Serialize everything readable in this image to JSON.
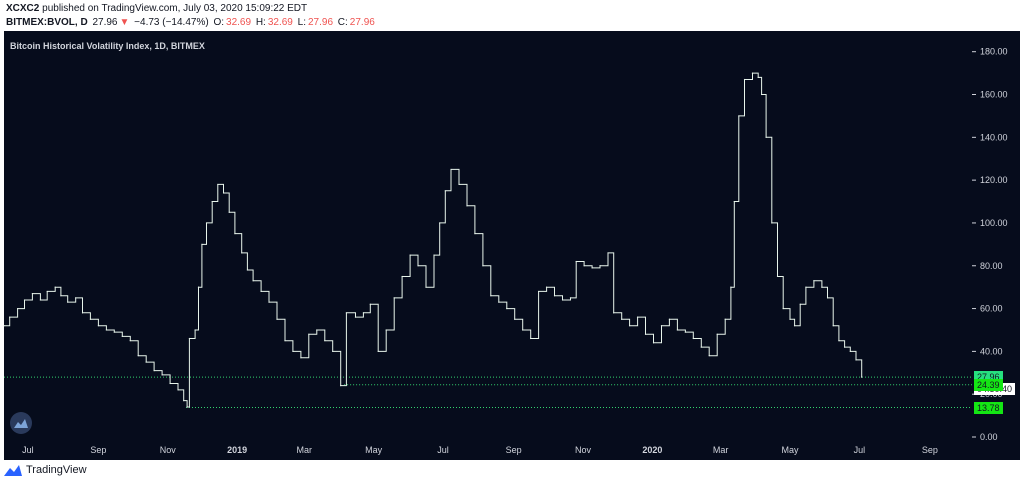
{
  "header": {
    "author": "XCXC2",
    "published_text": "published on TradingView.com, July 03, 2020 15:09:22 EDT",
    "symbol": "BITMEX:BVOL, D",
    "last": "27.96",
    "change_arrow": "▼",
    "change": "−4.73 (−14.47%)",
    "o_label": "O:",
    "o": "32.69",
    "h_label": "H:",
    "h": "32.69",
    "l_label": "L:",
    "l": "27.96",
    "c_label": "C:",
    "c": "27.96"
  },
  "price_tags": {
    "last": "27.96",
    "countdown": "04:50:40",
    "level_a": "24.39",
    "level_b": "13.78"
  },
  "footer": {
    "brand": "TradingView"
  },
  "colors": {
    "background": "#060c1c",
    "line": "#e8f5ec",
    "tag_green": "#26e07f",
    "tag_bright": "#14e614",
    "dotted": "#32d26e"
  },
  "chart_data": {
    "type": "line",
    "title": "Bitcoin Historical Volatility Index, 1D, BITMEX",
    "ylim": [
      0,
      185
    ],
    "xlim": [
      "2018-06-10",
      "2020-10-08"
    ],
    "y_ticks": [
      "0.00",
      "20.00",
      "40.00",
      "60.00",
      "80.00",
      "100.00",
      "120.00",
      "140.00",
      "160.00",
      "180.00"
    ],
    "x_ticks": [
      {
        "date": "2018-07-01",
        "label": "Jul",
        "bold": false
      },
      {
        "date": "2018-09-01",
        "label": "Sep",
        "bold": false
      },
      {
        "date": "2018-11-01",
        "label": "Nov",
        "bold": false
      },
      {
        "date": "2019-01-01",
        "label": "2019",
        "bold": true
      },
      {
        "date": "2019-03-01",
        "label": "Mar",
        "bold": false
      },
      {
        "date": "2019-05-01",
        "label": "May",
        "bold": false
      },
      {
        "date": "2019-07-01",
        "label": "Jul",
        "bold": false
      },
      {
        "date": "2019-09-01",
        "label": "Sep",
        "bold": false
      },
      {
        "date": "2019-11-01",
        "label": "Nov",
        "bold": false
      },
      {
        "date": "2020-01-01",
        "label": "2020",
        "bold": true
      },
      {
        "date": "2020-03-01",
        "label": "Mar",
        "bold": false
      },
      {
        "date": "2020-05-01",
        "label": "May",
        "bold": false
      },
      {
        "date": "2020-07-01",
        "label": "Jul",
        "bold": false
      },
      {
        "date": "2020-09-01",
        "label": "Sep",
        "bold": false
      }
    ],
    "horizontal_lines": [
      {
        "value": 27.96,
        "from": "2018-06-10",
        "to": "2020-10-08"
      },
      {
        "value": 24.39,
        "from": "2019-04-05",
        "to": "2020-10-08"
      },
      {
        "value": 13.78,
        "from": "2018-11-17",
        "to": "2020-10-08"
      }
    ],
    "series": [
      {
        "points": [
          [
            "2018-06-10",
            52
          ],
          [
            "2018-06-15",
            56
          ],
          [
            "2018-06-22",
            60
          ],
          [
            "2018-06-28",
            64
          ],
          [
            "2018-07-05",
            67
          ],
          [
            "2018-07-12",
            64
          ],
          [
            "2018-07-18",
            68
          ],
          [
            "2018-07-25",
            70
          ],
          [
            "2018-07-30",
            66
          ],
          [
            "2018-08-05",
            63
          ],
          [
            "2018-08-12",
            65
          ],
          [
            "2018-08-18",
            58
          ],
          [
            "2018-08-25",
            55
          ],
          [
            "2018-09-01",
            52
          ],
          [
            "2018-09-08",
            50
          ],
          [
            "2018-09-15",
            49
          ],
          [
            "2018-09-22",
            47
          ],
          [
            "2018-09-29",
            45
          ],
          [
            "2018-10-06",
            38
          ],
          [
            "2018-10-13",
            35
          ],
          [
            "2018-10-20",
            31
          ],
          [
            "2018-10-27",
            29
          ],
          [
            "2018-11-03",
            25
          ],
          [
            "2018-11-10",
            22
          ],
          [
            "2018-11-15",
            17
          ],
          [
            "2018-11-18",
            14
          ],
          [
            "2018-11-20",
            46
          ],
          [
            "2018-11-25",
            50
          ],
          [
            "2018-11-28",
            70
          ],
          [
            "2018-12-01",
            90
          ],
          [
            "2018-12-05",
            100
          ],
          [
            "2018-12-10",
            110
          ],
          [
            "2018-12-15",
            118
          ],
          [
            "2018-12-20",
            114
          ],
          [
            "2018-12-25",
            105
          ],
          [
            "2018-12-30",
            95
          ],
          [
            "2019-01-05",
            86
          ],
          [
            "2019-01-10",
            78
          ],
          [
            "2019-01-15",
            73
          ],
          [
            "2019-01-22",
            68
          ],
          [
            "2019-01-29",
            63
          ],
          [
            "2019-02-05",
            55
          ],
          [
            "2019-02-12",
            45
          ],
          [
            "2019-02-19",
            40
          ],
          [
            "2019-02-26",
            37
          ],
          [
            "2019-03-05",
            48
          ],
          [
            "2019-03-12",
            50
          ],
          [
            "2019-03-19",
            45
          ],
          [
            "2019-03-26",
            40
          ],
          [
            "2019-04-02",
            24
          ],
          [
            "2019-04-07",
            58
          ],
          [
            "2019-04-15",
            56
          ],
          [
            "2019-04-22",
            58
          ],
          [
            "2019-04-28",
            62
          ],
          [
            "2019-05-05",
            40
          ],
          [
            "2019-05-12",
            50
          ],
          [
            "2019-05-19",
            65
          ],
          [
            "2019-05-26",
            75
          ],
          [
            "2019-06-02",
            85
          ],
          [
            "2019-06-09",
            80
          ],
          [
            "2019-06-16",
            70
          ],
          [
            "2019-06-23",
            85
          ],
          [
            "2019-06-28",
            100
          ],
          [
            "2019-07-03",
            115
          ],
          [
            "2019-07-08",
            125
          ],
          [
            "2019-07-15",
            118
          ],
          [
            "2019-07-22",
            108
          ],
          [
            "2019-07-29",
            95
          ],
          [
            "2019-08-05",
            80
          ],
          [
            "2019-08-12",
            66
          ],
          [
            "2019-08-19",
            63
          ],
          [
            "2019-08-26",
            60
          ],
          [
            "2019-09-02",
            55
          ],
          [
            "2019-09-09",
            50
          ],
          [
            "2019-09-16",
            46
          ],
          [
            "2019-09-23",
            68
          ],
          [
            "2019-09-30",
            70
          ],
          [
            "2019-10-07",
            66
          ],
          [
            "2019-10-14",
            64
          ],
          [
            "2019-10-21",
            65
          ],
          [
            "2019-10-26",
            82
          ],
          [
            "2019-11-02",
            80
          ],
          [
            "2019-11-09",
            79
          ],
          [
            "2019-11-16",
            80
          ],
          [
            "2019-11-23",
            86
          ],
          [
            "2019-11-28",
            58
          ],
          [
            "2019-12-05",
            55
          ],
          [
            "2019-12-12",
            52
          ],
          [
            "2019-12-19",
            56
          ],
          [
            "2019-12-26",
            48
          ],
          [
            "2020-01-02",
            44
          ],
          [
            "2020-01-09",
            52
          ],
          [
            "2020-01-16",
            55
          ],
          [
            "2020-01-23",
            50
          ],
          [
            "2020-01-30",
            49
          ],
          [
            "2020-02-06",
            46
          ],
          [
            "2020-02-13",
            42
          ],
          [
            "2020-02-20",
            38
          ],
          [
            "2020-02-27",
            48
          ],
          [
            "2020-03-05",
            55
          ],
          [
            "2020-03-10",
            70
          ],
          [
            "2020-03-13",
            110
          ],
          [
            "2020-03-17",
            150
          ],
          [
            "2020-03-22",
            167
          ],
          [
            "2020-03-29",
            170
          ],
          [
            "2020-04-03",
            168
          ],
          [
            "2020-04-06",
            160
          ],
          [
            "2020-04-10",
            140
          ],
          [
            "2020-04-15",
            100
          ],
          [
            "2020-04-20",
            75
          ],
          [
            "2020-04-25",
            60
          ],
          [
            "2020-05-01",
            55
          ],
          [
            "2020-05-05",
            52
          ],
          [
            "2020-05-10",
            62
          ],
          [
            "2020-05-15",
            70
          ],
          [
            "2020-05-22",
            73
          ],
          [
            "2020-05-29",
            70
          ],
          [
            "2020-06-03",
            65
          ],
          [
            "2020-06-08",
            52
          ],
          [
            "2020-06-13",
            45
          ],
          [
            "2020-06-18",
            42
          ],
          [
            "2020-06-23",
            40
          ],
          [
            "2020-06-28",
            36
          ],
          [
            "2020-07-03",
            27.96
          ]
        ]
      }
    ]
  }
}
